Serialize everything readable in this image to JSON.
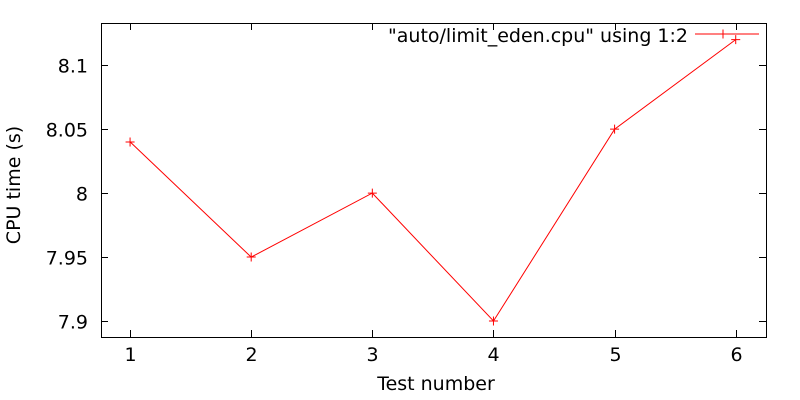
{
  "window": {
    "background": "#ffffff"
  },
  "chart_data": {
    "type": "line",
    "title": "",
    "xlabel": "Test number",
    "ylabel": "CPU time (s)",
    "legend": {
      "label": "\"auto/limit_eden.cpu\" using 1:2",
      "position": "top-right-inside"
    },
    "series": [
      {
        "name": "\"auto/limit_eden.cpu\" using 1:2",
        "color": "#ff0000",
        "marker": "plus",
        "x": [
          1,
          2,
          3,
          4,
          5,
          6
        ],
        "y": [
          8.04,
          7.95,
          8.0,
          7.9,
          8.05,
          8.12
        ]
      }
    ],
    "xticks": {
      "values": [
        1,
        2,
        3,
        4,
        5,
        6
      ],
      "labels": [
        "1",
        "2",
        "3",
        "4",
        "5",
        "6"
      ]
    },
    "yticks": {
      "values": [
        7.9,
        7.95,
        8.0,
        8.05,
        8.1
      ],
      "labels": [
        "7.9",
        "7.95",
        "8",
        "8.05",
        "8.1"
      ]
    },
    "xlim": [
      0.76,
      6.25
    ],
    "ylim": [
      7.8875,
      8.133
    ],
    "grid": false,
    "axis_color": "#000000",
    "text_color": "#000000",
    "background": "#ffffff"
  }
}
